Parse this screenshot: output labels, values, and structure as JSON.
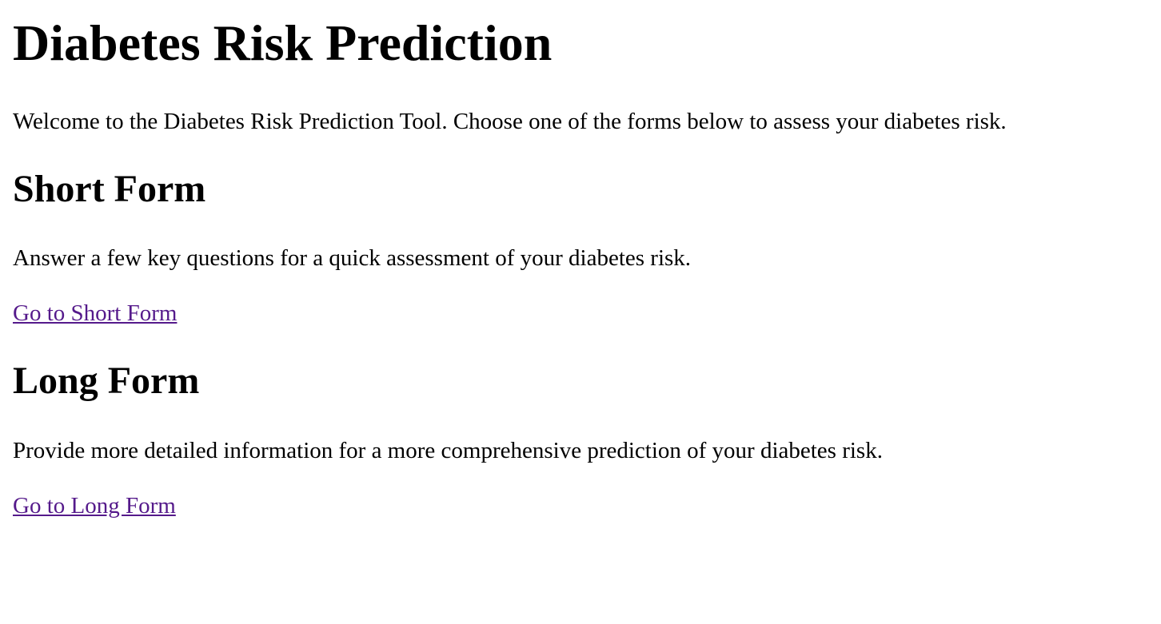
{
  "page": {
    "title": "Diabetes Risk Prediction",
    "intro": "Welcome to the Diabetes Risk Prediction Tool. Choose one of the forms below to assess your diabetes risk."
  },
  "short_form": {
    "heading": "Short Form",
    "description": "Answer a few key questions for a quick assessment of your diabetes risk.",
    "link_label": "Go to Short Form"
  },
  "long_form": {
    "heading": "Long Form",
    "description": "Provide more detailed information for a more comprehensive prediction of your diabetes risk.",
    "link_label": "Go to Long Form"
  },
  "colors": {
    "visited_link": "#551a8b",
    "text": "#000000",
    "background": "#ffffff"
  }
}
